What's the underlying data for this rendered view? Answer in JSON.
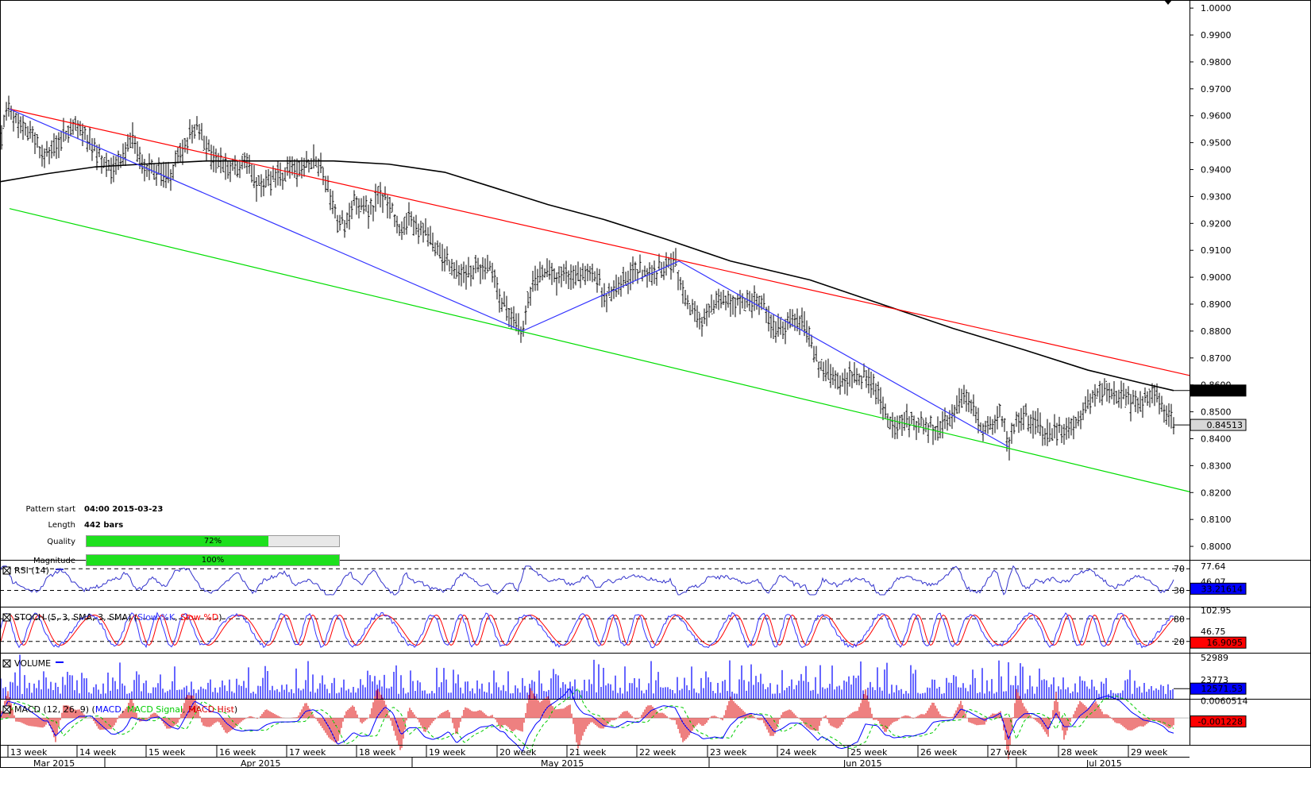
{
  "chart_data": {
    "type": "line",
    "instrument_panel": {
      "ylim": [
        0.795,
        1.003
      ],
      "y_ticks": [
        "1.0000",
        "0.9900",
        "0.9800",
        "0.9700",
        "0.9600",
        "0.9500",
        "0.9400",
        "0.9300",
        "0.9200",
        "0.9100",
        "0.9000",
        "0.8900",
        "0.8800",
        "0.8700",
        "0.8600",
        "0.8500",
        "0.8400",
        "0.8300",
        "0.8200",
        "0.8100",
        "0.8000"
      ],
      "last_price": "0.84513",
      "ma_value": "0.85790",
      "price_path": [
        [
          0,
          0.95
        ],
        [
          10,
          0.962
        ],
        [
          25,
          0.958
        ],
        [
          40,
          0.952
        ],
        [
          55,
          0.946
        ],
        [
          70,
          0.948
        ],
        [
          85,
          0.955
        ],
        [
          100,
          0.956
        ],
        [
          115,
          0.95
        ],
        [
          130,
          0.942
        ],
        [
          140,
          0.94
        ],
        [
          155,
          0.944
        ],
        [
          165,
          0.952
        ],
        [
          175,
          0.946
        ],
        [
          185,
          0.94
        ],
        [
          200,
          0.94
        ],
        [
          215,
          0.938
        ],
        [
          225,
          0.945
        ],
        [
          235,
          0.951
        ],
        [
          245,
          0.956
        ],
        [
          255,
          0.952
        ],
        [
          265,
          0.946
        ],
        [
          275,
          0.942
        ],
        [
          285,
          0.94
        ],
        [
          295,
          0.94
        ],
        [
          305,
          0.943
        ],
        [
          315,
          0.94
        ],
        [
          325,
          0.934
        ],
        [
          340,
          0.936
        ],
        [
          355,
          0.938
        ],
        [
          365,
          0.942
        ],
        [
          375,
          0.94
        ],
        [
          385,
          0.942
        ],
        [
          395,
          0.944
        ],
        [
          405,
          0.94
        ],
        [
          415,
          0.93
        ],
        [
          425,
          0.92
        ],
        [
          435,
          0.92
        ],
        [
          445,
          0.928
        ],
        [
          455,
          0.927
        ],
        [
          465,
          0.924
        ],
        [
          475,
          0.93
        ],
        [
          485,
          0.929
        ],
        [
          495,
          0.925
        ],
        [
          505,
          0.917
        ],
        [
          515,
          0.922
        ],
        [
          525,
          0.919
        ],
        [
          535,
          0.917
        ],
        [
          545,
          0.913
        ],
        [
          555,
          0.91
        ],
        [
          565,
          0.905
        ],
        [
          575,
          0.9
        ],
        [
          590,
          0.903
        ],
        [
          605,
          0.904
        ],
        [
          620,
          0.902
        ],
        [
          630,
          0.893
        ],
        [
          640,
          0.888
        ],
        [
          650,
          0.885
        ],
        [
          658,
          0.88
        ],
        [
          665,
          0.892
        ],
        [
          675,
          0.9
        ],
        [
          685,
          0.903
        ],
        [
          700,
          0.9
        ],
        [
          715,
          0.901
        ],
        [
          730,
          0.9
        ],
        [
          745,
          0.903
        ],
        [
          760,
          0.894
        ],
        [
          775,
          0.895
        ],
        [
          790,
          0.9
        ],
        [
          805,
          0.902
        ],
        [
          820,
          0.901
        ],
        [
          835,
          0.904
        ],
        [
          850,
          0.906
        ],
        [
          860,
          0.895
        ],
        [
          870,
          0.888
        ],
        [
          885,
          0.884
        ],
        [
          900,
          0.89
        ],
        [
          915,
          0.892
        ],
        [
          930,
          0.891
        ],
        [
          945,
          0.89
        ],
        [
          960,
          0.893
        ],
        [
          975,
          0.88
        ],
        [
          985,
          0.881
        ],
        [
          995,
          0.884
        ],
        [
          1010,
          0.883
        ],
        [
          1020,
          0.88
        ],
        [
          1030,
          0.866
        ],
        [
          1045,
          0.864
        ],
        [
          1060,
          0.862
        ],
        [
          1075,
          0.864
        ],
        [
          1090,
          0.863
        ],
        [
          1105,
          0.858
        ],
        [
          1115,
          0.848
        ],
        [
          1125,
          0.845
        ],
        [
          1140,
          0.847
        ],
        [
          1155,
          0.846
        ],
        [
          1170,
          0.845
        ],
        [
          1185,
          0.844
        ],
        [
          1200,
          0.848
        ],
        [
          1210,
          0.856
        ],
        [
          1220,
          0.853
        ],
        [
          1230,
          0.848
        ],
        [
          1240,
          0.843
        ],
        [
          1250,
          0.845
        ],
        [
          1260,
          0.85
        ],
        [
          1270,
          0.837
        ],
        [
          1280,
          0.848
        ],
        [
          1290,
          0.849
        ],
        [
          1300,
          0.845
        ],
        [
          1310,
          0.845
        ],
        [
          1320,
          0.842
        ],
        [
          1335,
          0.843
        ],
        [
          1350,
          0.845
        ],
        [
          1365,
          0.851
        ],
        [
          1380,
          0.857
        ],
        [
          1395,
          0.859
        ],
        [
          1410,
          0.856
        ],
        [
          1425,
          0.853
        ],
        [
          1440,
          0.854
        ],
        [
          1455,
          0.856
        ],
        [
          1465,
          0.852
        ],
        [
          1472,
          0.847
        ],
        [
          1478,
          0.845
        ]
      ],
      "moving_average": [
        [
          0,
          0.9355
        ],
        [
          60,
          0.9385
        ],
        [
          120,
          0.941
        ],
        [
          180,
          0.942
        ],
        [
          260,
          0.9432
        ],
        [
          340,
          0.9432
        ],
        [
          420,
          0.9432
        ],
        [
          490,
          0.942
        ],
        [
          560,
          0.939
        ],
        [
          620,
          0.9335
        ],
        [
          690,
          0.927
        ],
        [
          760,
          0.9215
        ],
        [
          840,
          0.914
        ],
        [
          920,
          0.906
        ],
        [
          1020,
          0.899
        ],
        [
          1120,
          0.889
        ],
        [
          1200,
          0.881
        ],
        [
          1290,
          0.873
        ],
        [
          1370,
          0.8655
        ],
        [
          1440,
          0.8605
        ],
        [
          1478,
          0.8579
        ]
      ],
      "red_trendline": [
        [
          12,
          0.9625
        ],
        [
          1498,
          0.8635
        ]
      ],
      "green_trendline": [
        [
          12,
          0.9255
        ],
        [
          1498,
          0.8203
        ]
      ],
      "blue_pattern": [
        [
          12,
          0.9625
        ],
        [
          658,
          0.88
        ],
        [
          855,
          0.906
        ],
        [
          1270,
          0.837
        ]
      ]
    },
    "pattern_info": {
      "start_label": "Pattern start",
      "start_value": "04:00 2015-03-23",
      "length_label": "Length",
      "length_value": "442 bars",
      "quality_label": "Quality",
      "quality_pct": 72,
      "quality_text": "72%",
      "magnitude_label": "Magnitude",
      "magnitude_pct": 100,
      "magnitude_text": "100%"
    },
    "rsi_panel": {
      "title": "RSI (14)",
      "level_high": "70",
      "level_low": "30",
      "tick_top": "77.64",
      "tick_mid": "46.07",
      "value": "33.21614"
    },
    "stoch_panel": {
      "title_prefix": "STOCH (5, 3, SMA, 3, SMA) (",
      "slow_k": "Slow %K",
      "sep": ", ",
      "slow_d": "Slow %D",
      "title_suffix": ")",
      "level_high": "80",
      "level_low": "20",
      "tick_top": "102.95",
      "tick_mid": "46.75",
      "value": "16.9095"
    },
    "volume_panel": {
      "title": "VOLUME",
      "tick_top": "52989",
      "tick_mid": "23773",
      "value": "12571.53"
    },
    "macd_panel": {
      "title_prefix": "MACD (12, 26, 9) (",
      "macd": "MACD",
      "sep1": ", ",
      "signal": "MACD Signal",
      "sep2": ", ",
      "hist": "MACD Hist",
      "title_suffix": ")",
      "tick_top": "0.0060514",
      "value": "-0.001228"
    },
    "x_weeks": [
      "13 week",
      "14 week",
      "15 week",
      "16 week",
      "17 week",
      "18 week",
      "19 week",
      "20 week",
      "21 week",
      "22 week",
      "23 week",
      "24 week",
      "25 week",
      "26 week",
      "27 week",
      "28 week",
      "29 week"
    ],
    "x_months": [
      "Mar 2015",
      "Apr 2015",
      "May 2015",
      "Jun 2015",
      "Jul 2015"
    ],
    "colors": {
      "price": "#000000",
      "moving_average": "#000000",
      "red_trendline": "#ff0000",
      "green_trendline": "#00dd00",
      "blue_pattern": "#3333ff",
      "rsi": "#3333cc",
      "stoch_k": "#3333ff",
      "stoch_d": "#ff0000",
      "volume": "#0000ff",
      "macd": "#0000ff",
      "macd_signal": "#00cc00",
      "macd_hist": "#dd0000",
      "value_box_blue": "#0000ff",
      "value_box_red": "#ff0000"
    }
  }
}
